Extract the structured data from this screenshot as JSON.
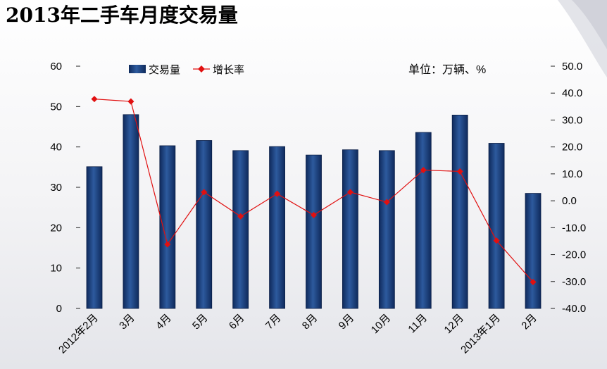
{
  "title": "2013年二手车月度交易量",
  "chart_data": {
    "type": "bar+line",
    "unit_note": "单位：万辆、%",
    "categories": [
      "2012年2月",
      "3月",
      "4月",
      "5月",
      "6月",
      "7月",
      "8月",
      "9月",
      "10月",
      "11月",
      "12月",
      "2013年1月",
      "2月"
    ],
    "series": [
      {
        "name": "交易量",
        "kind": "bar",
        "axis": "left",
        "color": "#1f3f7a",
        "values": [
          35.1,
          48.0,
          40.3,
          41.6,
          39.1,
          40.1,
          38.0,
          39.3,
          39.1,
          43.6,
          47.9,
          40.9,
          28.5
        ]
      },
      {
        "name": "增长率",
        "kind": "line",
        "axis": "right",
        "color": "#e11010",
        "values": [
          37.8,
          36.9,
          -16.2,
          3.2,
          -5.8,
          2.6,
          -5.3,
          3.2,
          -0.5,
          11.4,
          10.9,
          -14.8,
          -30.2
        ]
      }
    ],
    "left_axis": {
      "min": 0,
      "max": 60,
      "step": 10,
      "tick_labels": [
        "0",
        "10",
        "20",
        "30",
        "40",
        "50",
        "60"
      ]
    },
    "right_axis": {
      "min": -40,
      "max": 50,
      "step": 10,
      "tick_labels": [
        "-40.0",
        "-30.0",
        "-20.0",
        "-10.0",
        "0.0",
        "10.0",
        "20.0",
        "30.0",
        "40.0",
        "50.0"
      ]
    },
    "legend_placement": "top-left",
    "grid": false
  }
}
